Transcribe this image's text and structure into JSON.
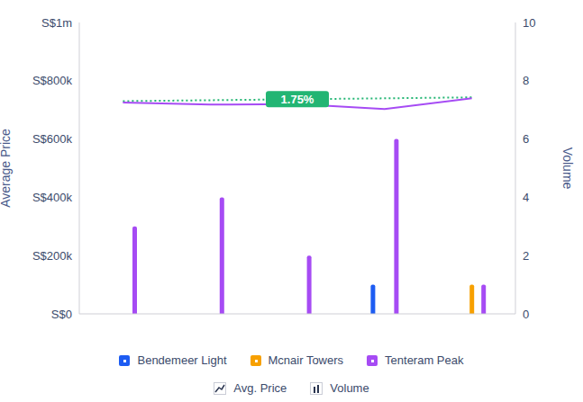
{
  "chart_data": {
    "type": "bar",
    "categories": [
      null,
      null,
      null,
      null,
      null
    ],
    "series": [
      {
        "name": "Bendemeer Light",
        "color": "#1d5cf2",
        "axis": "y2",
        "values": [
          null,
          null,
          null,
          1,
          null
        ]
      },
      {
        "name": "Mcnair Towers",
        "color": "#f7a000",
        "axis": "y2",
        "values": [
          null,
          null,
          null,
          null,
          1
        ]
      },
      {
        "name": "Tenteram Peak",
        "color": "#a64bf4",
        "axis": "y2",
        "values": [
          3,
          4,
          2,
          6,
          1
        ]
      },
      {
        "name": "Tenteram Peak",
        "type": "line",
        "color": "#a64bf4",
        "values": [
          725000,
          718000,
          720000,
          703000,
          740000
        ]
      }
    ],
    "trend": {
      "values": [
        730000,
        null,
        null,
        null,
        743000
      ],
      "label": "1.75%",
      "color": "#22b573",
      "line_style": "dotted"
    },
    "y_label": "Average Price",
    "y2_label": "Volume",
    "ylim": [
      0,
      1000000
    ],
    "yticks": [
      {
        "value": 0,
        "label": "S$0"
      },
      {
        "value": 200000,
        "label": "S$200k"
      },
      {
        "value": 400000,
        "label": "S$400k"
      },
      {
        "value": 600000,
        "label": "S$600k"
      },
      {
        "value": 800000,
        "label": "S$800k"
      },
      {
        "value": 1000000,
        "label": "S$1m"
      }
    ],
    "y2lim": [
      0,
      10
    ],
    "y2ticks": [
      0,
      2,
      4,
      6,
      8,
      10
    ],
    "grid": false,
    "tick_labels": "y",
    "legend": "bottom",
    "legend_keys": [
      {
        "label": "Avg. Price",
        "marker": "line"
      },
      {
        "label": "Volume",
        "marker": "bar"
      }
    ]
  }
}
